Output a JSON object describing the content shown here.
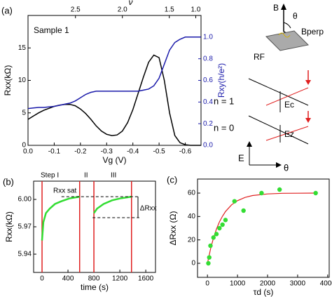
{
  "chart_data": [
    {
      "type": "line",
      "panel_label": "(a)",
      "annotation": "Sample 1",
      "xlabel": "Vg (V)",
      "ylabel": "Rxx(kΩ)",
      "y2label": "Rxy(h/e²)",
      "x2label": "ν",
      "xlim": [
        0,
        -0.66
      ],
      "ylim": [
        0,
        20
      ],
      "y2lim": [
        0,
        1.2
      ],
      "xticks": [
        {
          "value": 0,
          "label": "0.0"
        },
        -0.1,
        -0.2,
        -0.3,
        -0.4,
        -0.5,
        -0.6
      ],
      "yticks": [
        0,
        5,
        10,
        15
      ],
      "y2ticks": [
        {
          "value": 0,
          "label": "0.0"
        },
        0.2,
        0.4,
        0.6,
        0.8,
        {
          "value": 1,
          "label": "1.0"
        }
      ],
      "x2ticks": [
        {
          "value": -0.181,
          "label": "2.5"
        },
        {
          "value": -0.36,
          "label": "2.0"
        },
        {
          "value": -0.539,
          "label": "1.5"
        },
        {
          "value": -0.64,
          "label": "1.0"
        }
      ],
      "x": [
        0,
        -0.02,
        -0.04,
        -0.06,
        -0.08,
        -0.1,
        -0.12,
        -0.14,
        -0.16,
        -0.18,
        -0.2,
        -0.22,
        -0.24,
        -0.26,
        -0.28,
        -0.3,
        -0.32,
        -0.34,
        -0.36,
        -0.38,
        -0.4,
        -0.42,
        -0.44,
        -0.46,
        -0.48,
        -0.5,
        -0.52,
        -0.54,
        -0.56,
        -0.58,
        -0.6,
        -0.62,
        -0.64,
        -0.66
      ],
      "series": [
        {
          "color": "#000000",
          "values": [
            4.0,
            4.5,
            5.0,
            5.4,
            5.7,
            6.0,
            6.2,
            6.3,
            6.3,
            6.1,
            5.6,
            4.9,
            4.0,
            3.0,
            2.2,
            1.7,
            1.5,
            1.6,
            2.2,
            3.5,
            5.5,
            8.0,
            10.5,
            12.8,
            13.9,
            13.5,
            10.0,
            5.0,
            1.5,
            0.4,
            0.1,
            0.0,
            0.0,
            0.0
          ]
        },
        {
          "color": "#1a1aaa",
          "axis": "y2",
          "values": [
            0.34,
            0.345,
            0.35,
            0.35,
            0.355,
            0.36,
            0.37,
            0.38,
            0.39,
            0.41,
            0.44,
            0.47,
            0.49,
            0.5,
            0.5,
            0.5,
            0.5,
            0.5,
            0.5,
            0.5,
            0.5,
            0.5,
            0.51,
            0.52,
            0.55,
            0.62,
            0.75,
            0.88,
            0.95,
            0.98,
            1.0,
            1.0,
            1.0,
            1.0
          ]
        }
      ]
    },
    {
      "type": "line",
      "panel_label": "(b)",
      "xlabel": "time (s)",
      "ylabel": "Rxx(kΩ)",
      "annotations": [
        "Step I",
        "II",
        "III",
        "Rxx sat",
        "ΔRxx"
      ],
      "xlim": [
        -130,
        1750
      ],
      "ylim": [
        5.92,
        6.02
      ],
      "xticks": [
        0,
        400,
        800,
        1200,
        1600
      ],
      "yticks": [
        5.94,
        5.97,
        {
          "value": 6,
          "label": "6.00"
        }
      ],
      "x": [
        0,
        20,
        60,
        120,
        200,
        300,
        420,
        500,
        580,
        690,
        800,
        850,
        950,
        1080,
        1200,
        1380
      ],
      "values": [
        5.955,
        5.975,
        5.985,
        5.99,
        5.995,
        5.998,
        6.001,
        6.002,
        6.003,
        null,
        5.985,
        5.99,
        5.995,
        5.999,
        6.001,
        6.003
      ],
      "color": "#33dd33",
      "vlines": [
        0,
        580,
        800,
        1380
      ],
      "vline_color": "#e02020",
      "hlines": [
        6.003,
        5.98
      ]
    },
    {
      "type": "scatter",
      "panel_label": "(c)",
      "xlabel": "τd (s)",
      "ylabel": "ΔRxx (Ω)",
      "xlim": [
        -330,
        4050
      ],
      "ylim": [
        -12,
        72
      ],
      "xticks": [
        0,
        1000,
        2000,
        3000,
        4000
      ],
      "yticks": [
        0,
        20,
        40,
        60
      ],
      "x": [
        30,
        60,
        100,
        200,
        300,
        400,
        500,
        600,
        900,
        1200,
        1800,
        2400,
        3600
      ],
      "values": [
        0,
        5,
        15,
        22,
        25,
        30,
        33,
        37,
        53,
        45,
        60,
        63,
        60
      ],
      "color": "#33dd33",
      "fit": {
        "color": "#e02020",
        "x": [
          0,
          100,
          200,
          300,
          400,
          500,
          600,
          800,
          1000,
          1250,
          1500,
          2000,
          2500,
          3000,
          3600
        ],
        "values": [
          0,
          12,
          21.5,
          29.2,
          35.4,
          40.2,
          44.2,
          49.9,
          53.5,
          56.3,
          57.9,
          59.3,
          59.8,
          59.9,
          60.0
        ]
      }
    }
  ],
  "diagram": {
    "labels": [
      "B",
      "θ",
      "Bperp",
      "RF",
      "n = 1",
      "n = 0",
      "Ec",
      "Ez",
      "E",
      "θ"
    ]
  }
}
